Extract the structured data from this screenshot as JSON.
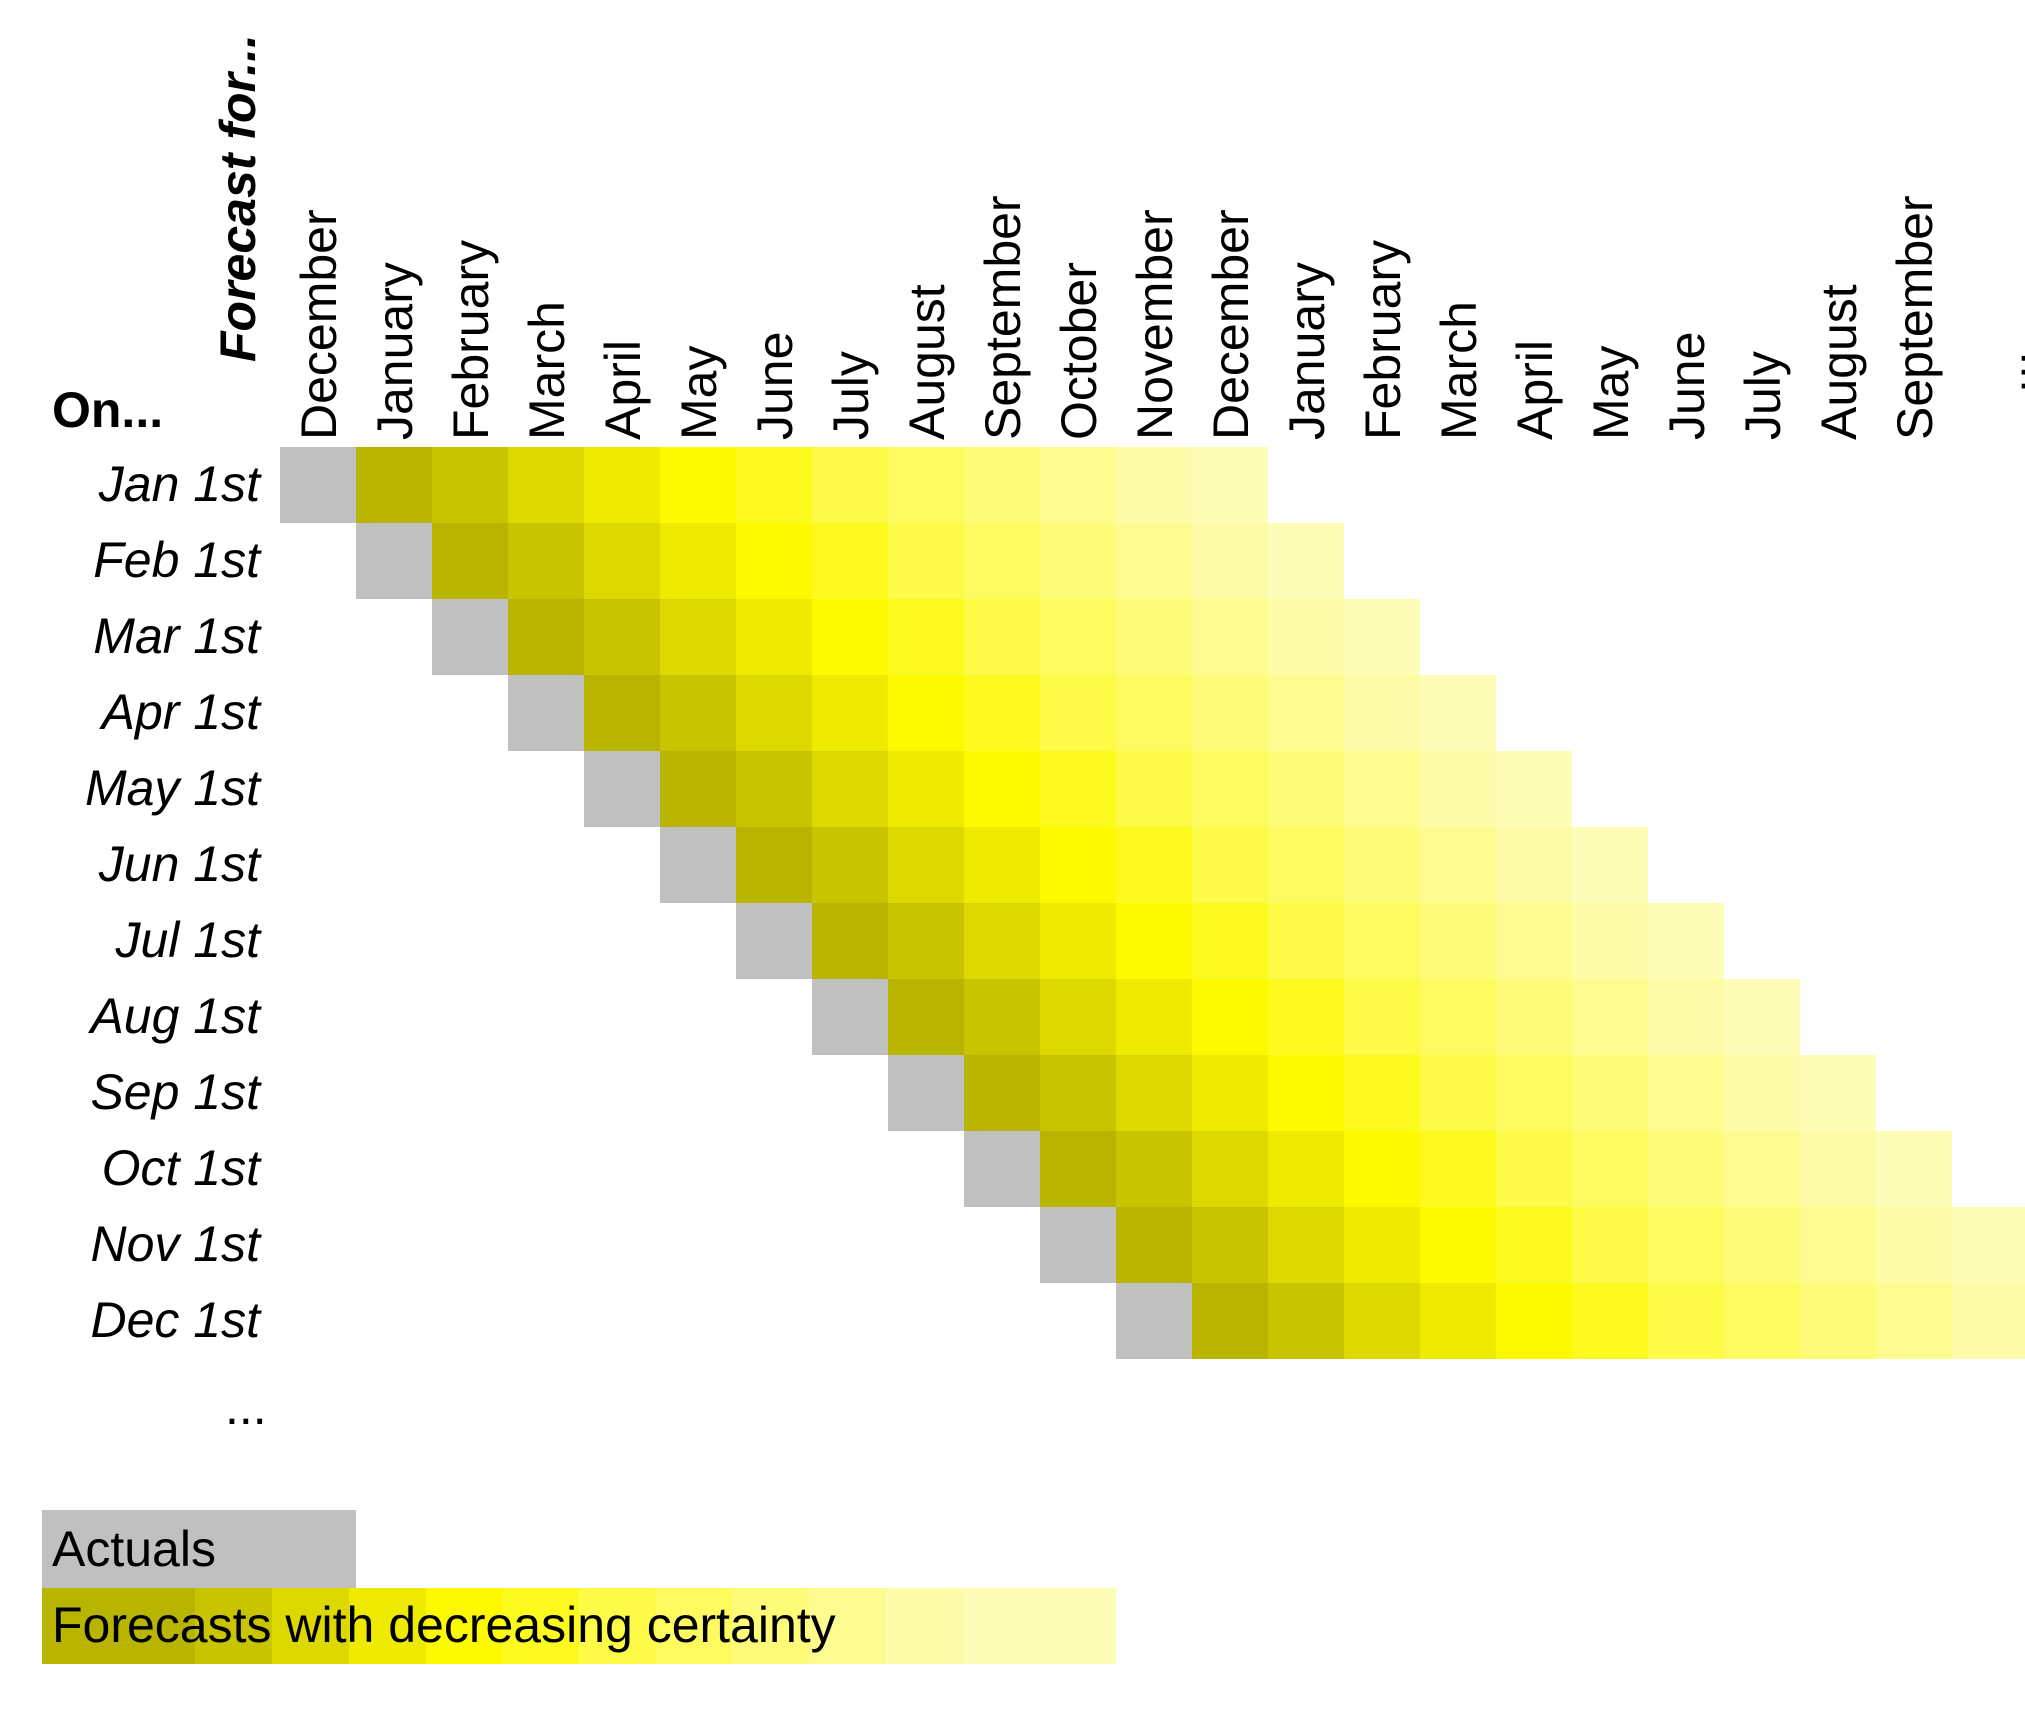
{
  "header": {
    "row_axis_title": "On...",
    "col_axis_title": "Forecast for..."
  },
  "columns": [
    "December",
    "January",
    "February",
    "March",
    "April",
    "May",
    "June",
    "July",
    "August",
    "September",
    "October",
    "November",
    "December",
    "January",
    "February",
    "March",
    "April",
    "May",
    "June",
    "July",
    "August",
    "September"
  ],
  "columns_trailing": "...",
  "rows": [
    {
      "label": "Jan 1st",
      "actual_col": 0,
      "forecast_count": 12
    },
    {
      "label": "Feb 1st",
      "actual_col": 1,
      "forecast_count": 12
    },
    {
      "label": "Mar 1st",
      "actual_col": 2,
      "forecast_count": 12
    },
    {
      "label": "Apr 1st",
      "actual_col": 3,
      "forecast_count": 12
    },
    {
      "label": "May 1st",
      "actual_col": 4,
      "forecast_count": 12
    },
    {
      "label": "Jun 1st",
      "actual_col": 5,
      "forecast_count": 12
    },
    {
      "label": "Jul 1st",
      "actual_col": 6,
      "forecast_count": 12
    },
    {
      "label": "Aug 1st",
      "actual_col": 7,
      "forecast_count": 12
    },
    {
      "label": "Sep 1st",
      "actual_col": 8,
      "forecast_count": 12
    },
    {
      "label": "Oct 1st",
      "actual_col": 9,
      "forecast_count": 12
    },
    {
      "label": "Nov 1st",
      "actual_col": 10,
      "forecast_count": 12
    },
    {
      "label": "Dec 1st",
      "actual_col": 11,
      "forecast_count": 12
    }
  ],
  "rows_trailing": "...",
  "colors": {
    "actual": "#c0c0c0",
    "forecast_gradient": [
      "#b8b400",
      "#c8c400",
      "#dcd800",
      "#eeea00",
      "#fcf900",
      "#fdfa20",
      "#fdfb48",
      "#fdfb60",
      "#fdfb78",
      "#fefc90",
      "#fefca8",
      "#fefdb8"
    ]
  },
  "legend": {
    "actual_label": "Actuals",
    "forecast_label": "Forecasts with decreasing certainty"
  }
}
